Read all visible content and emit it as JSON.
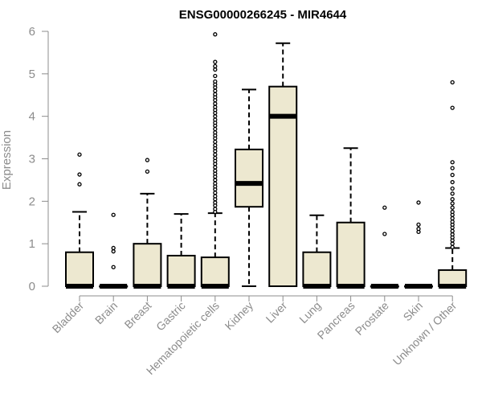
{
  "chart_data": {
    "type": "box",
    "title": "ENSG00000266245 - MIR4644",
    "xlabel": "",
    "ylabel": "Expression",
    "ylim": [
      0,
      6
    ],
    "yticks": [
      0,
      1,
      2,
      3,
      4,
      5,
      6
    ],
    "box_fill": "#ede8d0",
    "axis_color": "#8c8c8c",
    "categories": [
      "Bladder",
      "Brain",
      "Breast",
      "Gastric",
      "Hematopoietic cells",
      "Kidney",
      "Liver",
      "Lung",
      "Pancreas",
      "Prostate",
      "Skin",
      "Unknown / Other"
    ],
    "boxes": [
      {
        "category": "Bladder",
        "whisker_low": 0,
        "q1": 0,
        "median": 0,
        "q3": 0.8,
        "whisker_high": 1.75,
        "outliers": [
          2.4,
          2.63,
          3.1
        ]
      },
      {
        "category": "Brain",
        "whisker_low": 0,
        "q1": 0,
        "median": 0,
        "q3": 0,
        "whisker_high": 0,
        "outliers": [
          0.45,
          0.82,
          0.9,
          1.68
        ]
      },
      {
        "category": "Breast",
        "whisker_low": 0,
        "q1": 0,
        "median": 0,
        "q3": 1.0,
        "whisker_high": 2.18,
        "outliers": [
          2.7,
          2.97
        ]
      },
      {
        "category": "Gastric",
        "whisker_low": 0,
        "q1": 0,
        "median": 0,
        "q3": 0.72,
        "whisker_high": 1.7,
        "outliers": []
      },
      {
        "category": "Hematopoietic cells",
        "whisker_low": 0,
        "q1": 0,
        "median": 0,
        "q3": 0.68,
        "whisker_high": 1.72,
        "outliers": [
          1.75,
          1.82,
          1.9,
          1.97,
          2.05,
          2.12,
          2.2,
          2.28,
          2.35,
          2.42,
          2.5,
          2.58,
          2.65,
          2.72,
          2.8,
          2.88,
          2.95,
          3.02,
          3.1,
          3.18,
          3.25,
          3.32,
          3.4,
          3.48,
          3.55,
          3.62,
          3.7,
          3.78,
          3.85,
          3.92,
          4.0,
          4.08,
          4.15,
          4.22,
          4.3,
          4.38,
          4.45,
          4.52,
          4.6,
          4.68,
          4.75,
          4.82,
          4.95,
          5.1,
          5.18,
          5.28,
          5.93
        ]
      },
      {
        "category": "Kidney",
        "whisker_low": 0,
        "q1": 1.87,
        "median": 2.42,
        "q3": 3.22,
        "whisker_high": 4.63,
        "outliers": []
      },
      {
        "category": "Liver",
        "whisker_low": 0,
        "q1": 0,
        "median": 4.0,
        "q3": 4.7,
        "whisker_high": 5.72,
        "outliers": []
      },
      {
        "category": "Lung",
        "whisker_low": 0,
        "q1": 0,
        "median": 0,
        "q3": 0.8,
        "whisker_high": 1.67,
        "outliers": []
      },
      {
        "category": "Pancreas",
        "whisker_low": 0,
        "q1": 0,
        "median": 0,
        "q3": 1.5,
        "whisker_high": 3.25,
        "outliers": []
      },
      {
        "category": "Prostate",
        "whisker_low": 0,
        "q1": 0,
        "median": 0,
        "q3": 0,
        "whisker_high": 0,
        "outliers": [
          1.23,
          1.85
        ]
      },
      {
        "category": "Skin",
        "whisker_low": 0,
        "q1": 0,
        "median": 0,
        "q3": 0,
        "whisker_high": 0,
        "outliers": [
          1.28,
          1.35,
          1.45,
          1.97
        ]
      },
      {
        "category": "Unknown / Other",
        "whisker_low": 0,
        "q1": 0,
        "median": 0,
        "q3": 0.38,
        "whisker_high": 0.9,
        "outliers": [
          0.92,
          1.0,
          1.08,
          1.15,
          1.22,
          1.3,
          1.38,
          1.45,
          1.52,
          1.6,
          1.68,
          1.75,
          1.85,
          1.95,
          2.05,
          2.18,
          2.3,
          2.45,
          2.62,
          2.78,
          2.92,
          4.2,
          4.8
        ]
      }
    ]
  }
}
